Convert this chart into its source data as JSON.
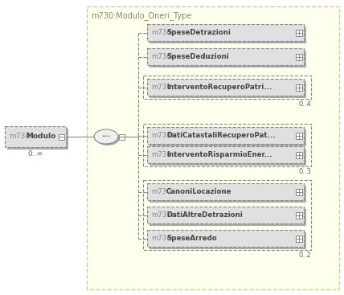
{
  "title": "m730:Modulo_Oneri_Type",
  "bg_color": "#ffffee",
  "bg_border": "#cccc99",
  "modulo_label_prefix": "m730:",
  "modulo_label_name": "Modulo",
  "modulo_cardinality": "0..∞",
  "child_nodes": [
    {
      "label_prefix": "m730:",
      "label_name": "SpeseDetrazioni",
      "cardinality": null,
      "group": 1
    },
    {
      "label_prefix": "m730:",
      "label_name": "SpeseDeduzioni",
      "cardinality": null,
      "group": 1
    },
    {
      "label_prefix": "m730:",
      "label_name": "InterventoRecuperoPatri...",
      "cardinality": "0..4",
      "group": 2
    },
    {
      "label_prefix": "m730:",
      "label_name": "DatiCatastaliRecuperoPat...",
      "cardinality": null,
      "group": 3
    },
    {
      "label_prefix": "m730:",
      "label_name": "InterventoRisparmioEner...",
      "cardinality": "0..3",
      "group": 3
    },
    {
      "label_prefix": "m730:",
      "label_name": "CanoniLocazione",
      "cardinality": null,
      "group": 4
    },
    {
      "label_prefix": "m730:",
      "label_name": "DatiAltreDetrazioni",
      "cardinality": null,
      "group": 4
    },
    {
      "label_prefix": "m730:",
      "label_name": "SpeseArredo",
      "cardinality": "0..2",
      "group": 4
    }
  ],
  "box_fill": "#e0e0e0",
  "box_shadow": "#aaaaaa",
  "box_border": "#888888",
  "box_text_prefix_color": "#888888",
  "box_text_name_color": "#444444",
  "title_color": "#888866",
  "card_color": "#666666",
  "spine_color": "#888888",
  "connector_fill": "#eeeeee",
  "connector_border": "#888888",
  "fig_w": 4.28,
  "fig_h": 3.67,
  "dpi": 100
}
